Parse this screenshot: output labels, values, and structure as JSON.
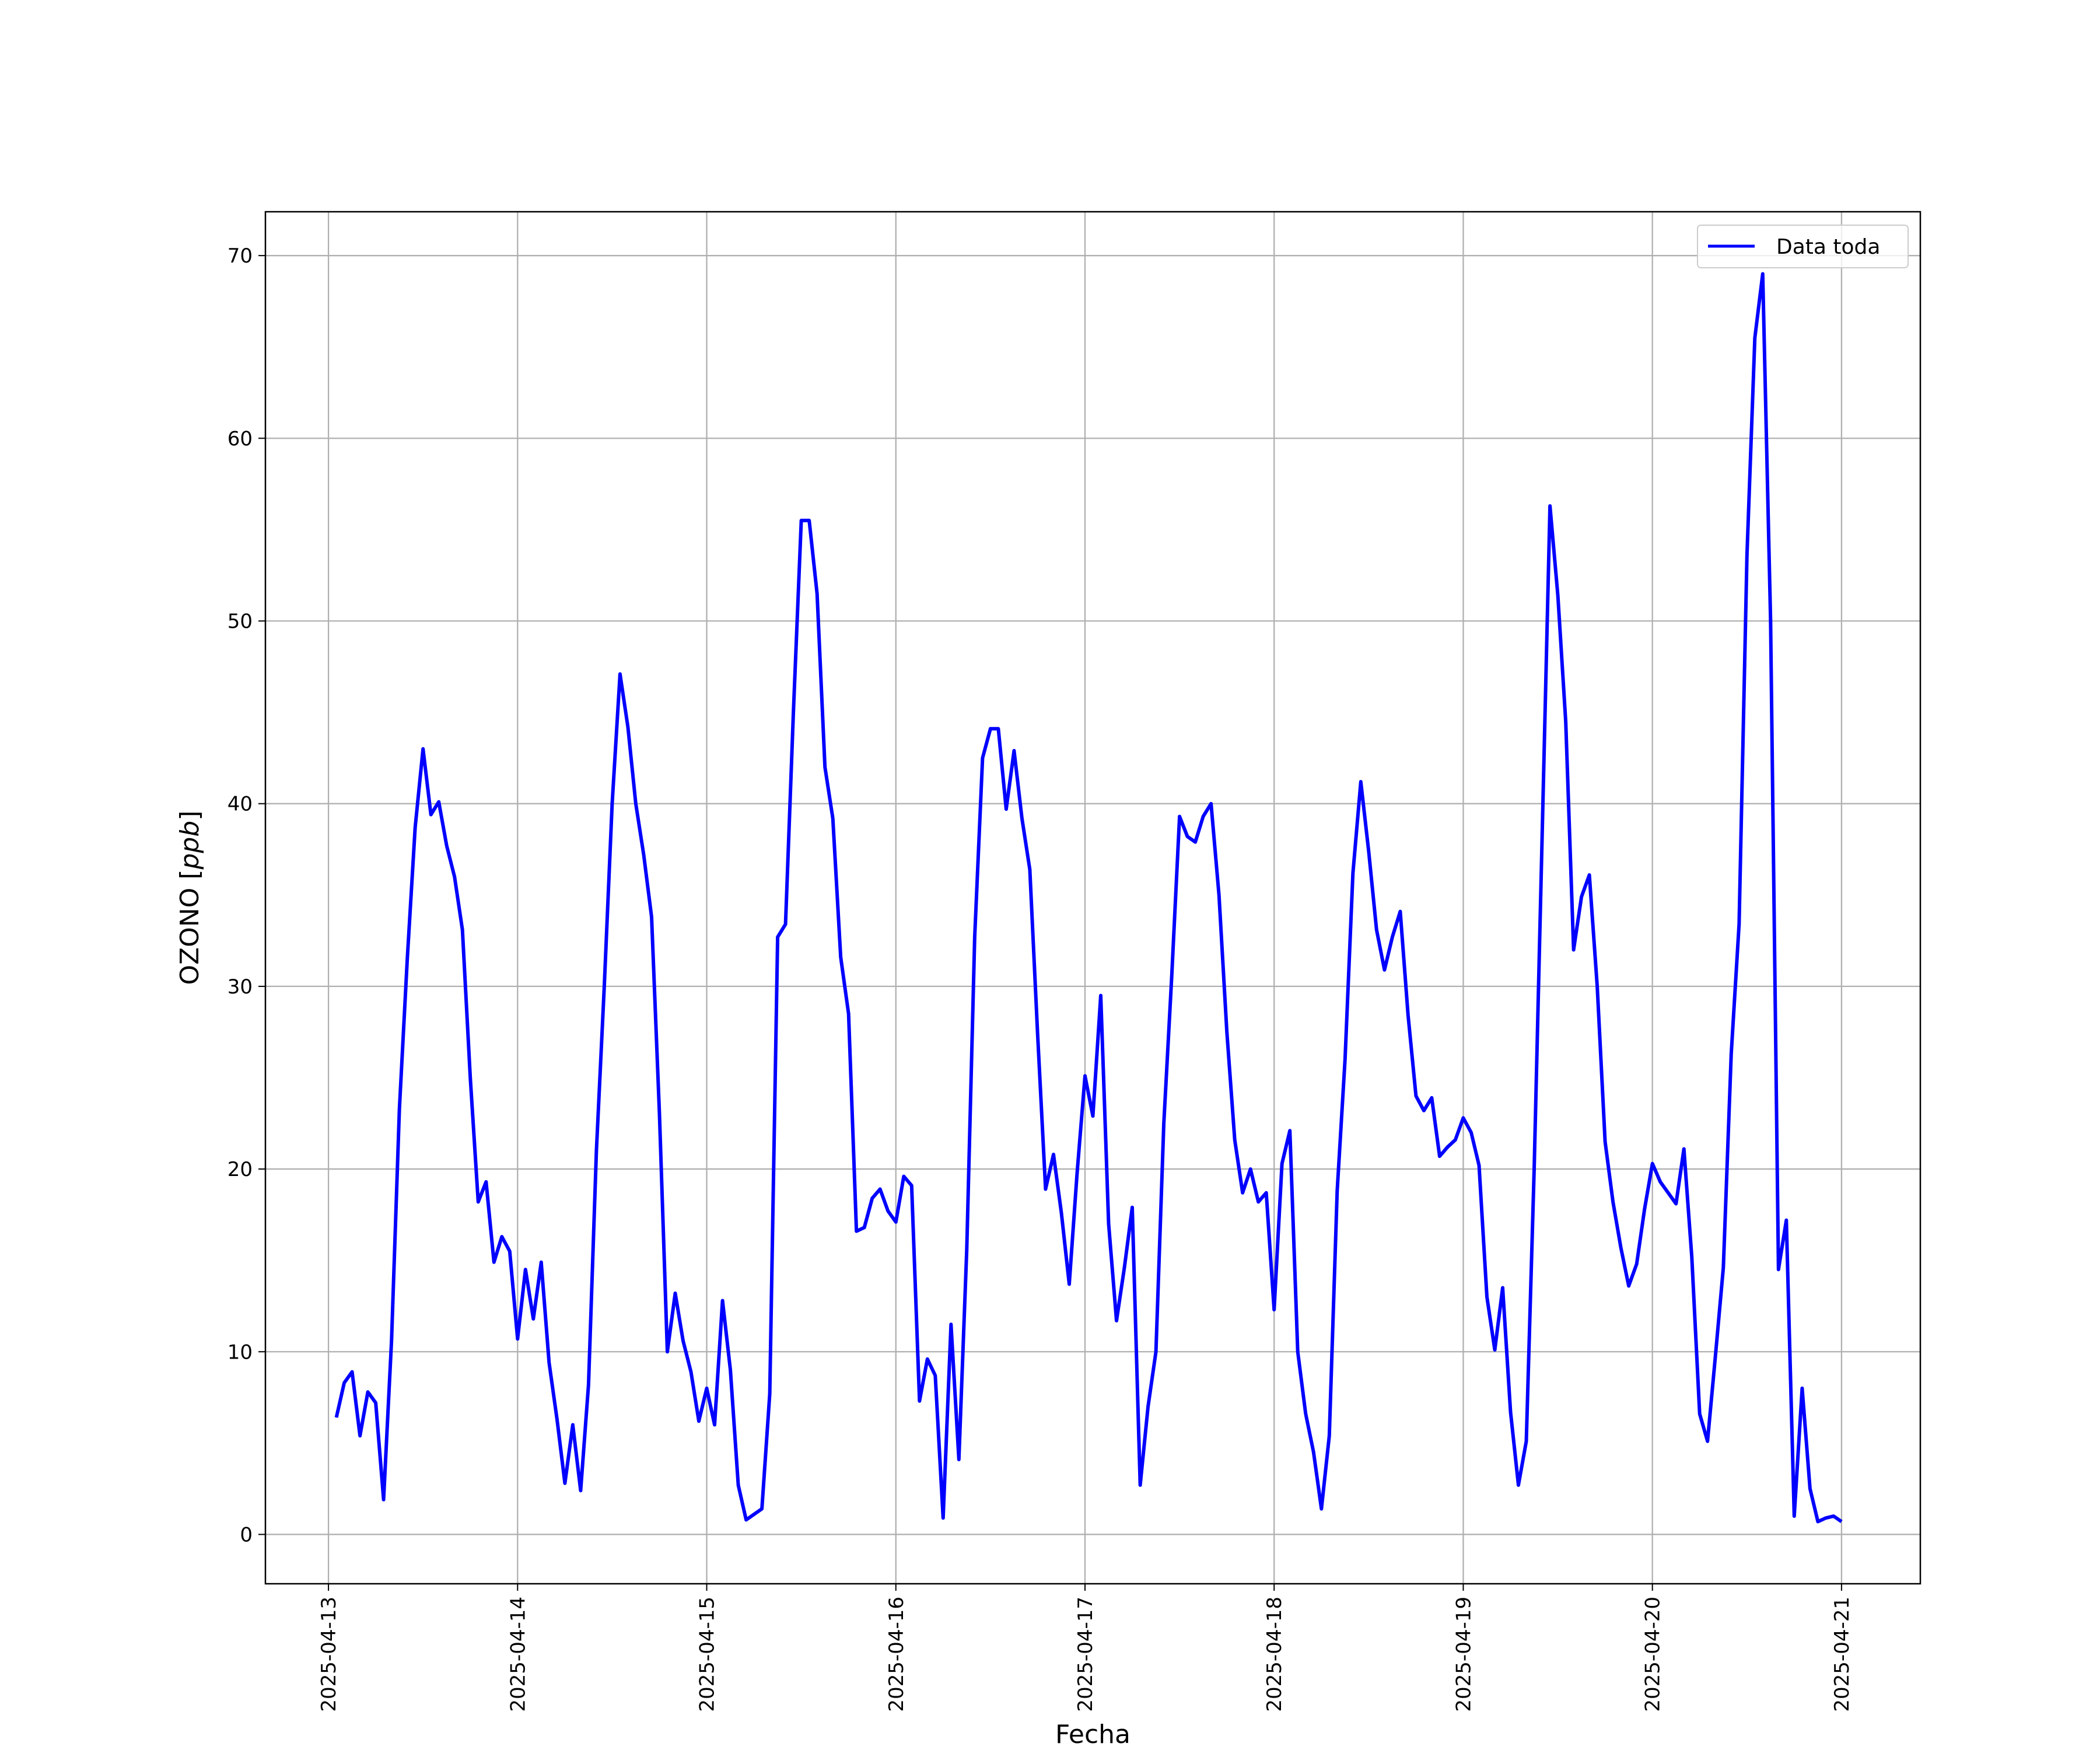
{
  "chart_data": {
    "type": "line",
    "title": "",
    "xlabel": "Fecha",
    "ylabel_text": "OZONO",
    "ylabel_unit": "ppb",
    "x_tick_labels": [
      "2025-04-13",
      "2025-04-14",
      "2025-04-15",
      "2025-04-16",
      "2025-04-17",
      "2025-04-18",
      "2025-04-19",
      "2025-04-20",
      "2025-04-21"
    ],
    "y_tick_labels": [
      "0",
      "10",
      "20",
      "30",
      "40",
      "50",
      "60",
      "70"
    ],
    "y_ticks": [
      0,
      10,
      20,
      30,
      40,
      50,
      60,
      70
    ],
    "xlim": [
      "2025-04-12 16:00",
      "2025-04-21 10:00"
    ],
    "ylim": [
      -2.7,
      72.4
    ],
    "grid": true,
    "legend_position": "upper right",
    "series": [
      {
        "name": "Data toda",
        "color": "#0000ff",
        "x_start": "2025-04-13 01:00",
        "x_step": "1 hour",
        "values": [
          6.4,
          8.3,
          8.9,
          5.4,
          7.8,
          7.2,
          1.9,
          10.6,
          23.3,
          31.5,
          38.7,
          43.0,
          39.4,
          40.1,
          37.7,
          36.0,
          33.1,
          25.0,
          18.2,
          19.3,
          14.9,
          16.3,
          15.5,
          10.7,
          14.5,
          11.8,
          14.9,
          9.4,
          6.3,
          2.8,
          6.0,
          2.4,
          8.2,
          21.0,
          30.0,
          40.0,
          47.1,
          44.2,
          40.0,
          37.2,
          33.8,
          23.0,
          10.0,
          13.2,
          10.6,
          8.9,
          6.2,
          8.0,
          6.0,
          12.8,
          9.0,
          2.7,
          0.8,
          1.1,
          1.4,
          7.7,
          32.7,
          33.4,
          45.0,
          55.5,
          55.5,
          51.5,
          42.0,
          39.2,
          31.6,
          28.5,
          16.6,
          16.8,
          18.4,
          18.9,
          17.7,
          17.1,
          19.6,
          19.1,
          7.3,
          9.6,
          8.7,
          0.9,
          11.5,
          4.1,
          15.6,
          32.7,
          42.5,
          44.1,
          44.1,
          39.7,
          42.9,
          39.2,
          36.4,
          27.3,
          18.9,
          20.8,
          17.6,
          13.7,
          19.8,
          25.1,
          22.9,
          29.5,
          17.0,
          11.7,
          14.6,
          17.9,
          2.7,
          7.0,
          10.0,
          22.5,
          30.5,
          39.3,
          38.2,
          37.9,
          39.3,
          40.0,
          35.0,
          27.5,
          21.6,
          18.7,
          20.0,
          18.2,
          18.7,
          12.3,
          20.3,
          22.1,
          10.0,
          6.6,
          4.5,
          1.4,
          5.4,
          18.8,
          26.0,
          36.2,
          41.2,
          37.4,
          33.1,
          30.9,
          32.7,
          34.1,
          28.4,
          24.0,
          23.2,
          23.9,
          20.7,
          21.2,
          21.6,
          22.8,
          22.0,
          20.2,
          13.0,
          10.1,
          13.5,
          6.7,
          2.7,
          5.1,
          20.0,
          38.0,
          56.3,
          51.4,
          44.5,
          32.0,
          34.9,
          36.1,
          30.0,
          21.5,
          18.2,
          15.7,
          13.6,
          14.8,
          17.8,
          20.3,
          19.3,
          18.7,
          18.1,
          21.1,
          15.2,
          6.6,
          5.1,
          9.8,
          14.6,
          26.3,
          33.4,
          53.6,
          65.5,
          69.0,
          50.0,
          14.5,
          17.2,
          1.0,
          8.0,
          2.5,
          0.7,
          0.9,
          1.0,
          0.7
        ]
      }
    ]
  }
}
